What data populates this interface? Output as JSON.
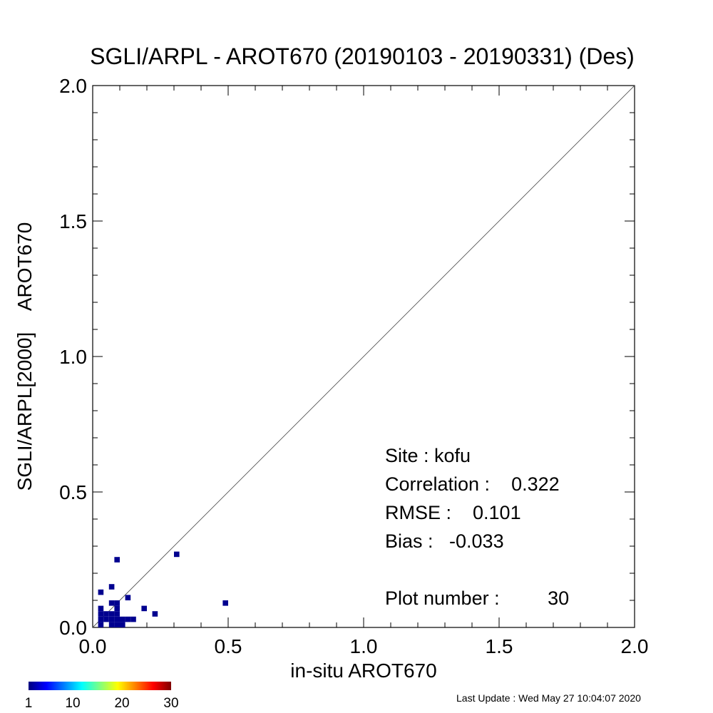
{
  "chart_data": {
    "type": "scatter",
    "title": "SGLI/ARPL - AROT670 (20190103 - 20190331) (Des)",
    "xlabel": "in-situ AROT670",
    "ylabel": "SGLI/ARPL[2000]    AROT670",
    "xlim": [
      0.0,
      2.0
    ],
    "ylim": [
      0.0,
      2.0
    ],
    "xticks": [
      "0.0",
      "0.5",
      "1.0",
      "1.5",
      "2.0"
    ],
    "yticks": [
      "0.0",
      "0.5",
      "1.0",
      "1.5",
      "2.0"
    ],
    "tick_values": [
      0.0,
      0.5,
      1.0,
      1.5,
      2.0
    ],
    "reference_line": "1:1",
    "grid": false,
    "point_color": "#00008f",
    "bin_size": 0.02,
    "points": [
      {
        "x": 0.02,
        "y": 0.0
      },
      {
        "x": 0.06,
        "y": 0.0
      },
      {
        "x": 0.08,
        "y": 0.0
      },
      {
        "x": 0.1,
        "y": 0.0
      },
      {
        "x": 0.02,
        "y": 0.02
      },
      {
        "x": 0.04,
        "y": 0.02
      },
      {
        "x": 0.06,
        "y": 0.02
      },
      {
        "x": 0.08,
        "y": 0.02
      },
      {
        "x": 0.1,
        "y": 0.02
      },
      {
        "x": 0.12,
        "y": 0.02
      },
      {
        "x": 0.14,
        "y": 0.02
      },
      {
        "x": 0.02,
        "y": 0.04
      },
      {
        "x": 0.04,
        "y": 0.04
      },
      {
        "x": 0.06,
        "y": 0.04
      },
      {
        "x": 0.08,
        "y": 0.04
      },
      {
        "x": 0.02,
        "y": 0.06
      },
      {
        "x": 0.08,
        "y": 0.06
      },
      {
        "x": 0.06,
        "y": 0.08
      },
      {
        "x": 0.08,
        "y": 0.08
      },
      {
        "x": 0.02,
        "y": 0.12
      },
      {
        "x": 0.06,
        "y": 0.14
      },
      {
        "x": 0.12,
        "y": 0.1
      },
      {
        "x": 0.18,
        "y": 0.06
      },
      {
        "x": 0.22,
        "y": 0.04
      },
      {
        "x": 0.08,
        "y": 0.24
      },
      {
        "x": 0.3,
        "y": 0.26
      },
      {
        "x": 0.48,
        "y": 0.08
      }
    ],
    "colorbar": {
      "labels": [
        "1",
        "10",
        "20",
        "30"
      ],
      "values": [
        1,
        10,
        20,
        30
      ],
      "min": 1,
      "max": 30,
      "colors": [
        "#00007f",
        "#0000ff",
        "#0080ff",
        "#00ffff",
        "#80ff80",
        "#ffff00",
        "#ff8000",
        "#ff0000",
        "#7f0000"
      ]
    }
  },
  "stats": {
    "site": "Site : kofu",
    "correlation": "Correlation :    0.322",
    "rmse": "RMSE :    0.101",
    "bias": "Bias :   -0.033",
    "plot_number": "Plot number :         30"
  },
  "footer": {
    "last_update": "Last Update : Wed May 27 10:04:07 2020"
  }
}
